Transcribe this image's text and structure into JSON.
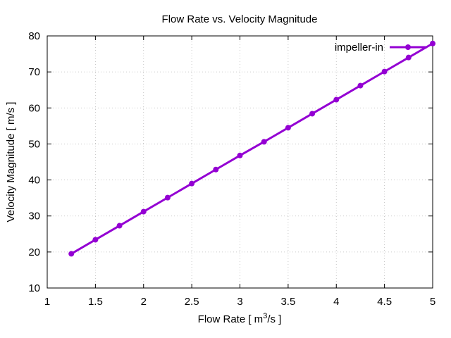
{
  "chart_data": {
    "type": "line",
    "title": "Flow Rate vs. Velocity Magnitude",
    "xlabel": {
      "prefix": "Flow Rate [ m",
      "sup": "3",
      "suffix": "/s ]"
    },
    "ylabel": "Velocity Magnitude [ m/s ]",
    "xlim": [
      1,
      5
    ],
    "ylim": [
      10,
      80
    ],
    "xticks": [
      1,
      1.5,
      2,
      2.5,
      3,
      3.5,
      4,
      4.5,
      5
    ],
    "xtick_labels": [
      "1",
      "1.5",
      "2",
      "2.5",
      "3",
      "3.5",
      "4",
      "4.5",
      "5"
    ],
    "yticks": [
      10,
      20,
      30,
      40,
      50,
      60,
      70,
      80
    ],
    "ytick_labels": [
      "10",
      "20",
      "30",
      "40",
      "50",
      "60",
      "70",
      "80"
    ],
    "grid": true,
    "legend_position": "top-right",
    "series": [
      {
        "name": "impeller-in",
        "color": "#9400d3",
        "x": [
          1.25,
          1.5,
          1.75,
          2.0,
          2.25,
          2.5,
          2.75,
          3.0,
          3.25,
          3.5,
          3.75,
          4.0,
          4.25,
          4.5,
          4.75,
          5.0
        ],
        "y": [
          19.5,
          23.4,
          27.3,
          31.2,
          35.1,
          39.0,
          42.9,
          46.8,
          50.6,
          54.5,
          58.4,
          62.3,
          66.2,
          70.1,
          74.0,
          77.9
        ]
      }
    ]
  }
}
